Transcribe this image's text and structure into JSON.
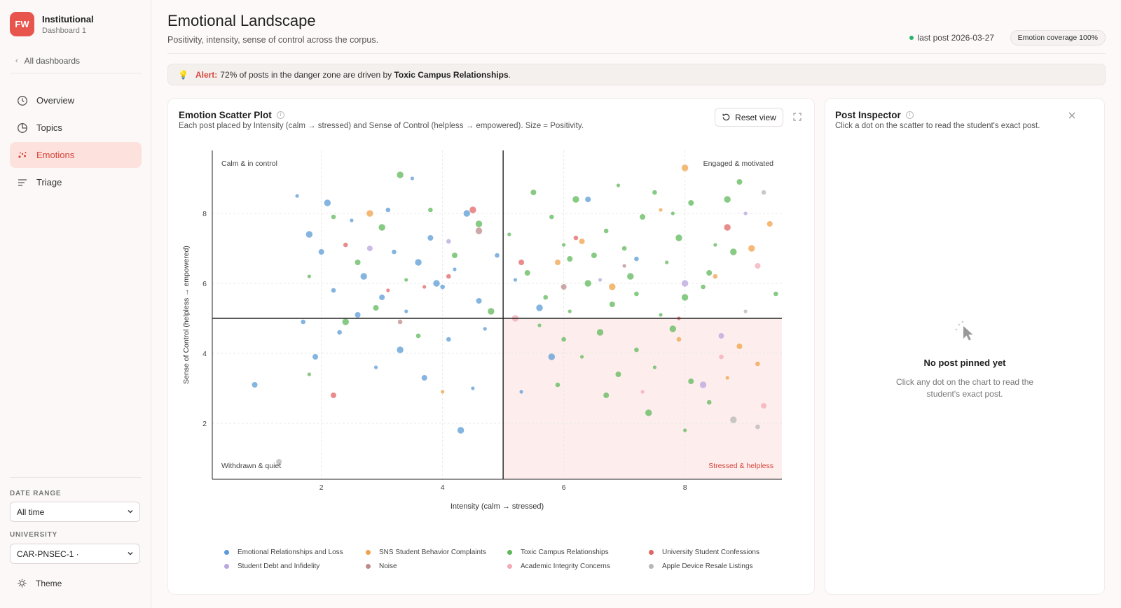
{
  "sidebar": {
    "brand_initials": "FW",
    "brand_title": "Institutional",
    "brand_subtitle": "Dashboard 1",
    "back_label": "All dashboards",
    "nav": [
      {
        "label": "Overview",
        "icon": "clock-icon"
      },
      {
        "label": "Topics",
        "icon": "pie-icon"
      },
      {
        "label": "Emotions",
        "icon": "sparkle-icon",
        "active": true
      },
      {
        "label": "Triage",
        "icon": "lines-icon"
      }
    ],
    "date_range_label": "DATE RANGE",
    "date_range_value": "All time",
    "university_label": "UNIVERSITY",
    "university_value": "CAR-PNSEC-1 ·",
    "theme_label": "Theme"
  },
  "header": {
    "title": "Emotional Landscape",
    "subtitle": "Positivity, intensity, sense of control across the corpus.",
    "last_post": "last post 2026-03-27",
    "coverage": "Emotion coverage 100%"
  },
  "alert": {
    "label": "Alert:",
    "pre": "72% of posts in the danger zone are driven by",
    "topic": "Toxic Campus Relationships",
    "post": "."
  },
  "scatter": {
    "title": "Emotion Scatter Plot",
    "subtitle": "Each post placed by Intensity (calm → stressed) and Sense of Control (helpless → empowered). Size = Positivity.",
    "reset_label": "Reset view"
  },
  "inspector": {
    "title": "Post Inspector",
    "subtitle": "Click a dot on the scatter to read the student's exact post.",
    "empty_title": "No post pinned yet",
    "empty_sub": "Click any dot on the chart to read the student's exact post."
  },
  "colors": {
    "accent": "#e8554c",
    "danger_zone": "#fdeeed"
  },
  "chart_data": {
    "type": "scatter",
    "title": "",
    "xlabel": "Intensity (calm → stressed)",
    "ylabel": "Sense of Control (helpless → empowered)",
    "xlim": [
      0.2,
      9.6
    ],
    "ylim": [
      0.4,
      9.8
    ],
    "xticks": [
      2,
      4,
      6,
      8
    ],
    "yticks": [
      2,
      4,
      6,
      8
    ],
    "grid": true,
    "quadrant_split": {
      "x": 5,
      "y": 5
    },
    "quadrant_labels": {
      "top_left": "Calm & in control",
      "top_right": "Engaged & motivated",
      "bottom_left": "Withdrawn & quiet",
      "bottom_right": "Stressed & helpless"
    },
    "legend_position": "bottom",
    "series": [
      {
        "name": "Emotional Relationships and Loss",
        "color": "#5b9bd5",
        "points": [
          [
            1.6,
            8.5
          ],
          [
            1.8,
            7.4
          ],
          [
            2.0,
            6.9
          ],
          [
            2.2,
            5.8
          ],
          [
            2.5,
            7.8
          ],
          [
            2.7,
            6.2
          ],
          [
            3.0,
            5.6
          ],
          [
            3.1,
            8.1
          ],
          [
            3.4,
            5.2
          ],
          [
            3.6,
            6.6
          ],
          [
            3.8,
            7.3
          ],
          [
            4.0,
            5.9
          ],
          [
            4.2,
            6.4
          ],
          [
            4.4,
            8.0
          ],
          [
            4.6,
            5.5
          ],
          [
            4.9,
            6.8
          ],
          [
            5.2,
            6.1
          ],
          [
            5.6,
            5.3
          ],
          [
            1.9,
            3.9
          ],
          [
            2.3,
            4.6
          ],
          [
            2.9,
            3.6
          ],
          [
            3.3,
            4.1
          ],
          [
            3.7,
            3.3
          ],
          [
            4.1,
            4.4
          ],
          [
            4.5,
            3.0
          ],
          [
            4.3,
            1.8
          ],
          [
            0.9,
            3.1
          ],
          [
            1.7,
            4.9
          ],
          [
            3.5,
            9.0
          ],
          [
            3.9,
            6.0
          ],
          [
            2.6,
            5.1
          ],
          [
            3.2,
            6.9
          ],
          [
            4.7,
            4.7
          ],
          [
            5.8,
            3.9
          ],
          [
            6.4,
            8.4
          ],
          [
            7.2,
            6.7
          ],
          [
            5.3,
            2.9
          ],
          [
            2.1,
            8.3
          ]
        ]
      },
      {
        "name": "SNS Student Behavior Complaints",
        "color": "#f0a24a",
        "points": [
          [
            8.0,
            9.3
          ],
          [
            9.4,
            7.7
          ],
          [
            8.5,
            6.2
          ],
          [
            7.6,
            8.1
          ],
          [
            6.8,
            5.9
          ],
          [
            8.9,
            4.2
          ],
          [
            9.2,
            3.7
          ],
          [
            4.0,
            2.9
          ],
          [
            2.8,
            8.0
          ],
          [
            6.3,
            7.2
          ],
          [
            7.9,
            4.4
          ],
          [
            8.7,
            3.3
          ],
          [
            9.1,
            7.0
          ],
          [
            5.9,
            6.6
          ]
        ]
      },
      {
        "name": "Toxic Campus Relationships",
        "color": "#5fb85a",
        "points": [
          [
            5.5,
            8.6
          ],
          [
            5.8,
            7.9
          ],
          [
            6.0,
            7.1
          ],
          [
            6.2,
            8.4
          ],
          [
            6.5,
            6.8
          ],
          [
            6.7,
            7.5
          ],
          [
            6.9,
            8.8
          ],
          [
            7.1,
            6.2
          ],
          [
            7.3,
            7.9
          ],
          [
            7.5,
            8.6
          ],
          [
            7.7,
            6.6
          ],
          [
            7.9,
            7.3
          ],
          [
            8.1,
            8.3
          ],
          [
            8.3,
            5.9
          ],
          [
            8.5,
            7.1
          ],
          [
            8.7,
            8.4
          ],
          [
            5.4,
            6.3
          ],
          [
            5.7,
            5.6
          ],
          [
            6.1,
            5.2
          ],
          [
            6.4,
            6.0
          ],
          [
            6.8,
            5.4
          ],
          [
            7.2,
            5.7
          ],
          [
            7.6,
            5.1
          ],
          [
            8.0,
            5.6
          ],
          [
            8.4,
            6.3
          ],
          [
            6.0,
            4.4
          ],
          [
            6.3,
            3.9
          ],
          [
            6.6,
            4.6
          ],
          [
            6.9,
            3.4
          ],
          [
            7.2,
            4.1
          ],
          [
            7.5,
            3.6
          ],
          [
            7.8,
            4.7
          ],
          [
            8.1,
            3.2
          ],
          [
            8.4,
            2.6
          ],
          [
            8.0,
            1.8
          ],
          [
            7.4,
            2.3
          ],
          [
            6.7,
            2.8
          ],
          [
            5.9,
            3.1
          ],
          [
            5.6,
            4.8
          ],
          [
            4.6,
            7.7
          ],
          [
            4.2,
            6.8
          ],
          [
            3.8,
            8.1
          ],
          [
            3.4,
            6.1
          ],
          [
            3.0,
            7.6
          ],
          [
            2.6,
            6.6
          ],
          [
            2.2,
            7.9
          ],
          [
            1.8,
            6.2
          ],
          [
            2.4,
            4.9
          ],
          [
            2.9,
            5.3
          ],
          [
            3.6,
            4.5
          ],
          [
            1.8,
            3.4
          ],
          [
            3.3,
            9.1
          ],
          [
            8.9,
            8.9
          ],
          [
            9.5,
            5.7
          ],
          [
            5.1,
            7.4
          ],
          [
            4.8,
            5.2
          ],
          [
            6.1,
            6.7
          ],
          [
            7.0,
            7.0
          ],
          [
            7.8,
            8.0
          ],
          [
            8.8,
            6.9
          ]
        ]
      },
      {
        "name": "University Student Confessions",
        "color": "#e06666",
        "points": [
          [
            2.4,
            7.1
          ],
          [
            3.1,
            5.8
          ],
          [
            4.5,
            8.1
          ],
          [
            5.3,
            6.6
          ],
          [
            6.2,
            7.3
          ],
          [
            7.9,
            5.0
          ],
          [
            8.7,
            7.6
          ],
          [
            2.2,
            2.8
          ],
          [
            4.1,
            6.2
          ],
          [
            3.7,
            5.9
          ]
        ]
      },
      {
        "name": "Student Debt and Infidelity",
        "color": "#b8a6dd",
        "points": [
          [
            9.0,
            8.0
          ],
          [
            8.0,
            6.0
          ],
          [
            8.6,
            4.5
          ],
          [
            4.1,
            7.2
          ],
          [
            6.6,
            6.1
          ],
          [
            8.3,
            3.1
          ],
          [
            2.8,
            7.0
          ]
        ]
      },
      {
        "name": "Noise",
        "color": "#bd8b8b",
        "points": [
          [
            4.6,
            7.5
          ],
          [
            6.0,
            5.9
          ],
          [
            3.3,
            4.9
          ],
          [
            7.0,
            6.5
          ]
        ]
      },
      {
        "name": "Academic Integrity Concerns",
        "color": "#f4a9b5",
        "points": [
          [
            9.2,
            6.5
          ],
          [
            8.6,
            3.9
          ],
          [
            7.3,
            2.9
          ],
          [
            5.2,
            5.0
          ],
          [
            9.3,
            2.5
          ]
        ]
      },
      {
        "name": "Apple Device Resale Listings",
        "color": "#b7b7b7",
        "points": [
          [
            9.3,
            8.6
          ],
          [
            9.0,
            5.2
          ],
          [
            8.8,
            2.1
          ],
          [
            1.3,
            0.9
          ],
          [
            9.2,
            1.9
          ]
        ]
      }
    ]
  }
}
